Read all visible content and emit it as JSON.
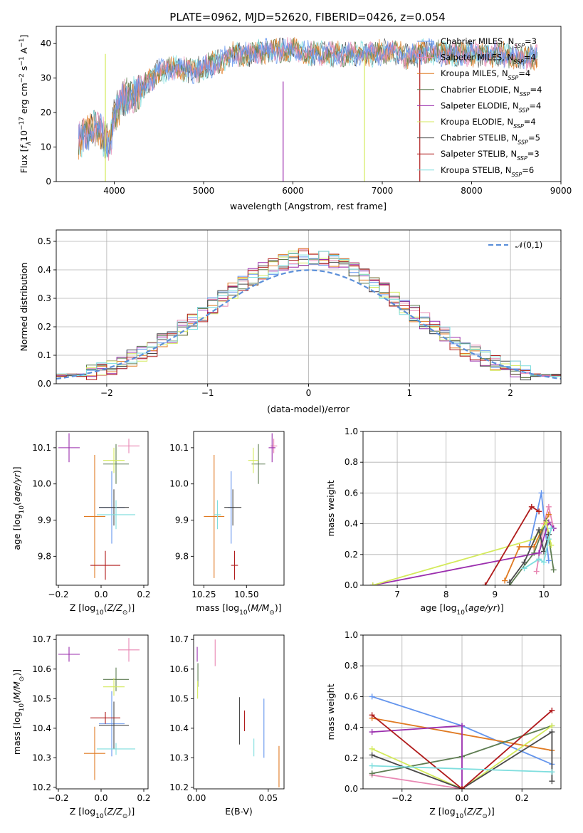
{
  "title": "PLATE=0962, MJD=52620, FIBERID=0426, z=0.054",
  "colors": {
    "Chabrier MILES": "#6495ed",
    "Salpeter MILES": "#e887b3",
    "Kroupa MILES": "#e07a22",
    "Chabrier ELODIE": "#5e7d52",
    "Salpeter ELODIE": "#9b2fae",
    "Kroupa ELODIE": "#d4ea5c",
    "Chabrier STELIB": "#4a4a4a",
    "Salpeter STELIB": "#b01c1c",
    "Kroupa STELIB": "#7fdede"
  },
  "chart_data": [
    {
      "id": "spectrum",
      "type": "line",
      "title": "PLATE=0962, MJD=52620, FIBERID=0426, z=0.054",
      "xlabel": "wavelength [Angstrom, rest frame]",
      "ylabel": "Flux [f_λ 10^-17 erg cm^-2 s^-1 A^-1]",
      "xlim": [
        3350,
        9000
      ],
      "ylim": [
        0,
        45
      ],
      "xticks": [
        4000,
        5000,
        6000,
        7000,
        8000,
        9000
      ],
      "yticks": [
        0,
        10,
        20,
        30,
        40
      ],
      "grid": false,
      "legend_position": "right",
      "legend": [
        "Chabrier MILES, N_SSP=3",
        "Salpeter MILES, N_SSP=4",
        "Kroupa MILES, N_SSP=4",
        "Chabrier ELODIE, N_SSP=4",
        "Salpeter ELODIE, N_SSP=4",
        "Kroupa ELODIE, N_SSP=4",
        "Chabrier STELIB, N_SSP=5",
        "Salpeter STELIB, N_SSP=3",
        "Kroupa STELIB, N_SSP=6"
      ],
      "continuum": {
        "x": [
          3600,
          3700,
          3800,
          3900,
          3950,
          4000,
          4100,
          4200,
          4300,
          4400,
          4500,
          4700,
          4900,
          5100,
          5200,
          5300,
          5500,
          5700,
          6000,
          6300,
          6500,
          6700,
          6900,
          7100,
          7300,
          7500,
          7700,
          7900,
          8100,
          8300,
          8500,
          8700
        ],
        "y": [
          12,
          14,
          16,
          12,
          10,
          20,
          24,
          25,
          27,
          29,
          32,
          33,
          32,
          34,
          35,
          37,
          37,
          38,
          38,
          37,
          37,
          37,
          37,
          38,
          36,
          38,
          37,
          37,
          37,
          37,
          36,
          36
        ]
      }
    },
    {
      "id": "residuals",
      "type": "step",
      "xlabel": "(data-model)/error",
      "ylabel": "Normed distribution",
      "xlim": [
        -2.5,
        2.5
      ],
      "ylim": [
        0,
        0.54
      ],
      "xticks": [
        -2,
        -1,
        0,
        1,
        2
      ],
      "yticks": [
        0.0,
        0.1,
        0.2,
        0.3,
        0.4,
        0.5
      ],
      "grid": true,
      "legend_position": "top-right",
      "reference_label": "𝒩(0,1)",
      "bin_width": 0.1
    },
    {
      "id": "age-vs-Z",
      "type": "errorbar",
      "xlabel": "Z [log10(Z/Z⊙)]",
      "ylabel": "age  [log10(age/yr)]",
      "xlim": [
        -0.21,
        0.22
      ],
      "ylim": [
        9.72,
        10.145
      ],
      "xticks": [
        -0.2,
        0.0,
        0.2
      ],
      "yticks": [
        9.8,
        9.9,
        10.0,
        10.1
      ],
      "grid": false,
      "points": [
        {
          "model": "Chabrier MILES",
          "x": 0.05,
          "y": 9.935,
          "xerr": 0.06,
          "yerr": 0.1
        },
        {
          "model": "Salpeter MILES",
          "x": 0.13,
          "y": 10.105,
          "xerr": 0.05,
          "yerr": 0.02
        },
        {
          "model": "Kroupa MILES",
          "x": -0.03,
          "y": 9.91,
          "xerr": 0.05,
          "yerr": 0.17
        },
        {
          "model": "Chabrier ELODIE",
          "x": 0.07,
          "y": 10.055,
          "xerr": 0.06,
          "yerr": 0.055
        },
        {
          "model": "Salpeter ELODIE",
          "x": -0.15,
          "y": 10.1,
          "xerr": 0.05,
          "yerr": 0.04
        },
        {
          "model": "Kroupa ELODIE",
          "x": 0.06,
          "y": 10.065,
          "xerr": 0.05,
          "yerr": 0.035
        },
        {
          "model": "Chabrier STELIB",
          "x": 0.06,
          "y": 9.935,
          "xerr": 0.07,
          "yerr": 0.05
        },
        {
          "model": "Salpeter STELIB",
          "x": 0.02,
          "y": 9.775,
          "xerr": 0.07,
          "yerr": 0.04
        },
        {
          "model": "Kroupa STELIB",
          "x": 0.07,
          "y": 9.915,
          "xerr": 0.09,
          "yerr": 0.04
        }
      ]
    },
    {
      "id": "age-vs-mass",
      "type": "errorbar",
      "xlabel": "mass [log10(M/M⊙)]",
      "ylabel": "",
      "xlim": [
        10.19,
        10.72
      ],
      "ylim": [
        9.72,
        10.145
      ],
      "xticks": [
        10.25,
        10.5
      ],
      "yticks": [
        9.8,
        9.9,
        10.0,
        10.1
      ],
      "grid": false,
      "points": [
        {
          "model": "Chabrier MILES",
          "x": 10.41,
          "y": 9.935,
          "xerr": 0.02,
          "yerr": 0.1
        },
        {
          "model": "Salpeter MILES",
          "x": 10.66,
          "y": 10.105,
          "xerr": 0.02,
          "yerr": 0.02
        },
        {
          "model": "Kroupa MILES",
          "x": 10.31,
          "y": 9.91,
          "xerr": 0.06,
          "yerr": 0.17
        },
        {
          "model": "Chabrier ELODIE",
          "x": 10.57,
          "y": 10.055,
          "xerr": 0.04,
          "yerr": 0.055
        },
        {
          "model": "Salpeter ELODIE",
          "x": 10.65,
          "y": 10.1,
          "xerr": 0.02,
          "yerr": 0.04
        },
        {
          "model": "Kroupa ELODIE",
          "x": 10.54,
          "y": 10.065,
          "xerr": 0.03,
          "yerr": 0.035
        },
        {
          "model": "Chabrier STELIB",
          "x": 10.42,
          "y": 9.935,
          "xerr": 0.05,
          "yerr": 0.05
        },
        {
          "model": "Salpeter STELIB",
          "x": 10.43,
          "y": 9.775,
          "xerr": 0.02,
          "yerr": 0.04
        },
        {
          "model": "Kroupa STELIB",
          "x": 10.33,
          "y": 9.915,
          "xerr": 0.02,
          "yerr": 0.04
        }
      ]
    },
    {
      "id": "mass-weight-vs-age",
      "type": "line",
      "xlabel": "age  [log10(age/yr)]",
      "ylabel": "mass weight",
      "xlim": [
        6.3,
        10.35
      ],
      "ylim": [
        0,
        1.0
      ],
      "xticks": [
        7,
        8,
        9,
        10
      ],
      "yticks": [
        0.0,
        0.2,
        0.4,
        0.6,
        0.8,
        1.0
      ],
      "grid": true,
      "series": [
        {
          "model": "Chabrier MILES",
          "x": [
            9.7,
            9.95,
            10.1
          ],
          "y": [
            0.25,
            0.6,
            0.16
          ]
        },
        {
          "model": "Salpeter MILES",
          "x": [
            9.85,
            10.0,
            10.1,
            10.2
          ],
          "y": [
            0.09,
            0.4,
            0.51,
            0.37
          ]
        },
        {
          "model": "Kroupa MILES",
          "x": [
            9.2,
            9.5,
            9.8,
            10.1
          ],
          "y": [
            0.03,
            0.25,
            0.25,
            0.46
          ]
        },
        {
          "model": "Chabrier ELODIE",
          "x": [
            9.3,
            9.8,
            10.05,
            10.2
          ],
          "y": [
            0.0,
            0.21,
            0.42,
            0.1
          ]
        },
        {
          "model": "Salpeter ELODIE",
          "x": [
            6.5,
            9.9,
            10.1,
            10.2
          ],
          "y": [
            0.0,
            0.21,
            0.41,
            0.37
          ]
        },
        {
          "model": "Kroupa ELODIE",
          "x": [
            6.5,
            9.8,
            10.05,
            10.15
          ],
          "y": [
            0.0,
            0.3,
            0.41,
            0.26
          ]
        },
        {
          "model": "Chabrier STELIB",
          "x": [
            9.3,
            9.6,
            9.9,
            10.0,
            10.1
          ],
          "y": [
            0.02,
            0.15,
            0.36,
            0.22,
            0.33
          ]
        },
        {
          "model": "Salpeter STELIB",
          "x": [
            8.8,
            9.75,
            9.9
          ],
          "y": [
            0.0,
            0.51,
            0.48
          ]
        },
        {
          "model": "Kroupa STELIB",
          "x": [
            9.6,
            9.9,
            10.0,
            10.1,
            10.15
          ],
          "y": [
            0.11,
            0.17,
            0.15,
            0.3,
            0.37
          ]
        }
      ]
    },
    {
      "id": "mass-vs-Z",
      "type": "errorbar",
      "xlabel": "Z [log10(Z/Z⊙)]",
      "ylabel": "mass [log10(M/M⊙)]",
      "xlim": [
        -0.21,
        0.22
      ],
      "ylim": [
        10.195,
        10.715
      ],
      "xticks": [
        -0.2,
        0.0,
        0.2
      ],
      "yticks": [
        10.2,
        10.3,
        10.4,
        10.5,
        10.6,
        10.7
      ],
      "grid": false,
      "points": [
        {
          "model": "Chabrier MILES",
          "x": 0.05,
          "y": 10.415,
          "xerr": 0.06,
          "yerr": 0.11
        },
        {
          "model": "Salpeter MILES",
          "x": 0.13,
          "y": 10.665,
          "xerr": 0.05,
          "yerr": 0.04
        },
        {
          "model": "Kroupa MILES",
          "x": -0.03,
          "y": 10.315,
          "xerr": 0.05,
          "yerr": 0.09
        },
        {
          "model": "Chabrier ELODIE",
          "x": 0.07,
          "y": 10.565,
          "xerr": 0.06,
          "yerr": 0.04
        },
        {
          "model": "Salpeter ELODIE",
          "x": -0.15,
          "y": 10.65,
          "xerr": 0.05,
          "yerr": 0.025
        },
        {
          "model": "Kroupa ELODIE",
          "x": 0.06,
          "y": 10.54,
          "xerr": 0.05,
          "yerr": 0.03
        },
        {
          "model": "Chabrier STELIB",
          "x": 0.06,
          "y": 10.41,
          "xerr": 0.07,
          "yerr": 0.08
        },
        {
          "model": "Salpeter STELIB",
          "x": 0.02,
          "y": 10.435,
          "xerr": 0.07,
          "yerr": 0.02
        },
        {
          "model": "Kroupa STELIB",
          "x": 0.07,
          "y": 10.33,
          "xerr": 0.09,
          "yerr": 0.02
        }
      ]
    },
    {
      "id": "mass-vs-EBV",
      "type": "errorbar",
      "xlabel": "E(B-V)",
      "ylabel": "",
      "xlim": [
        -0.002,
        0.061
      ],
      "ylim": [
        10.195,
        10.715
      ],
      "xticks": [
        0.0,
        0.05
      ],
      "yticks": [
        10.2,
        10.3,
        10.4,
        10.5,
        10.6,
        10.7
      ],
      "grid": false,
      "points": [
        {
          "model": "Chabrier MILES",
          "x": 0.047,
          "y": 10.4,
          "yerr": 0.1
        },
        {
          "model": "Salpeter MILES",
          "x": 0.013,
          "y": 10.655,
          "yerr": 0.045
        },
        {
          "model": "Kroupa MILES",
          "x": 0.0575,
          "y": 10.27,
          "yerr": 0.07
        },
        {
          "model": "Chabrier ELODIE",
          "x": 0.001,
          "y": 10.58,
          "yerr": 0.04
        },
        {
          "model": "Salpeter ELODIE",
          "x": 0.0005,
          "y": 10.65,
          "yerr": 0.025
        },
        {
          "model": "Kroupa ELODIE",
          "x": 0.0008,
          "y": 10.53,
          "yerr": 0.03
        },
        {
          "model": "Chabrier STELIB",
          "x": 0.03,
          "y": 10.425,
          "yerr": 0.08
        },
        {
          "model": "Salpeter STELIB",
          "x": 0.0335,
          "y": 10.425,
          "yerr": 0.035
        },
        {
          "model": "Kroupa STELIB",
          "x": 0.04,
          "y": 10.335,
          "yerr": 0.03
        }
      ]
    },
    {
      "id": "mass-weight-vs-Z",
      "type": "line",
      "xlabel": "Z [log10(Z/Z⊙)]",
      "ylabel": "mass weight",
      "xlim": [
        -0.33,
        0.33
      ],
      "ylim": [
        0,
        1.0
      ],
      "xticks": [
        -0.2,
        0.0,
        0.2
      ],
      "yticks": [
        0.0,
        0.2,
        0.4,
        0.6,
        0.8,
        1.0
      ],
      "grid": true,
      "series": [
        {
          "model": "Chabrier MILES",
          "x": [
            -0.3,
            0.0,
            0.3
          ],
          "y": [
            0.6,
            0.41,
            0.16
          ]
        },
        {
          "model": "Salpeter MILES",
          "x": [
            -0.3,
            0.0,
            0.3
          ],
          "y": [
            0.09,
            0.0,
            0.51
          ]
        },
        {
          "model": "Kroupa MILES",
          "x": [
            -0.3,
            0.3
          ],
          "y": [
            0.46,
            0.25
          ]
        },
        {
          "model": "Chabrier ELODIE",
          "x": [
            -0.3,
            0.0,
            0.3
          ],
          "y": [
            0.1,
            0.21,
            0.41
          ]
        },
        {
          "model": "Salpeter ELODIE",
          "x": [
            -0.3,
            0.0,
            0.0
          ],
          "y": [
            0.37,
            0.41,
            0.0
          ]
        },
        {
          "model": "Kroupa ELODIE",
          "x": [
            -0.3,
            0.0,
            0.3
          ],
          "y": [
            0.26,
            0.0,
            0.41
          ]
        },
        {
          "model": "Chabrier STELIB",
          "x": [
            -0.3,
            0.0,
            0.3,
            0.3
          ],
          "y": [
            0.22,
            0.0,
            0.37,
            0.05
          ]
        },
        {
          "model": "Salpeter STELIB",
          "x": [
            -0.3,
            0.0,
            0.3
          ],
          "y": [
            0.48,
            0.0,
            0.51
          ]
        },
        {
          "model": "Kroupa STELIB",
          "x": [
            -0.3,
            0.3
          ],
          "y": [
            0.15,
            0.11
          ]
        }
      ]
    }
  ]
}
